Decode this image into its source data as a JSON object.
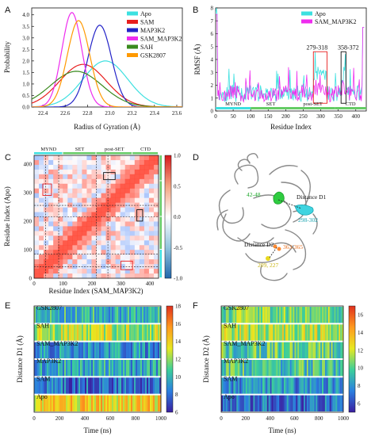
{
  "panels": {
    "A": {
      "letter": "A",
      "chart_data": {
        "type": "line",
        "xlabel": "Radius of Gyration (Å)",
        "ylabel": "Probability",
        "xlim": [
          22.3,
          23.65
        ],
        "ylim": [
          0,
          4.3
        ],
        "xticks": [
          22.4,
          22.6,
          22.8,
          23.0,
          23.2,
          23.4,
          23.6
        ],
        "yticks": [
          0.0,
          0.5,
          1.0,
          1.5,
          2.0,
          2.5,
          3.0,
          3.5,
          4.0
        ],
        "xtick_labels": [
          "22.4",
          "22.6",
          "22.8",
          "23.0",
          "23.2",
          "23.4",
          "23.6"
        ],
        "ytick_labels": [
          "0.0",
          "0.5",
          "1.0",
          "1.5",
          "2.0",
          "2.5",
          "3.0",
          "3.5",
          "4.0"
        ],
        "legend_position": "top-right",
        "series": [
          {
            "name": "Apo",
            "color": "#3de0e0",
            "mu": 22.96,
            "sigma": 0.2,
            "peak": 2.0
          },
          {
            "name": "SAM",
            "color": "#e81e1e",
            "mu": 22.76,
            "sigma": 0.21,
            "peak": 1.85
          },
          {
            "name": "MAP3K2",
            "color": "#2323c8",
            "mu": 22.91,
            "sigma": 0.105,
            "peak": 3.55
          },
          {
            "name": "SAM_MAP3K2",
            "color": "#ee2cee",
            "mu": 22.66,
            "sigma": 0.09,
            "peak": 4.1
          },
          {
            "name": "SAH",
            "color": "#3a8a1e",
            "mu": 22.7,
            "sigma": 0.23,
            "peak": 1.55
          },
          {
            "name": "GSK2807",
            "color": "#ff9900",
            "mu": 22.72,
            "sigma": 0.1,
            "peak": 3.75
          }
        ]
      }
    },
    "B": {
      "letter": "B",
      "chart_data": {
        "type": "line",
        "xlabel": "Residue Index",
        "ylabel": "RMSF (Å)",
        "xlim": [
          0,
          430
        ],
        "ylim": [
          0,
          8
        ],
        "xticks": [
          0,
          50,
          100,
          150,
          200,
          250,
          300,
          350,
          400
        ],
        "yticks": [
          0,
          1,
          2,
          3,
          4,
          5,
          6,
          7,
          8
        ],
        "xtick_labels": [
          "0",
          "50",
          "100",
          "150",
          "200",
          "250",
          "300",
          "350",
          "400"
        ],
        "ytick_labels": [
          "0",
          "1",
          "2",
          "3",
          "4",
          "5",
          "6",
          "7",
          "8"
        ],
        "legend_position": "top-right",
        "series": [
          {
            "name": "Apo",
            "color": "#3de0e0"
          },
          {
            "name": "SAM_MAP3K2",
            "color": "#ee2cee"
          }
        ],
        "highlight_boxes": [
          {
            "label": "279-318",
            "start": 279,
            "end": 318,
            "ymax": 4.6,
            "color": "#e81e1e"
          },
          {
            "label": "358-372",
            "start": 358,
            "end": 372,
            "ymax": 4.6,
            "color": "#111111"
          }
        ],
        "domains": [
          {
            "label": "MYND",
            "start": 0,
            "end": 100,
            "color": "#3de0e0"
          },
          {
            "label": "SET",
            "start": 100,
            "end": 215,
            "color": "#66cc66"
          },
          {
            "label": "post-SET",
            "start": 215,
            "end": 340,
            "color": "#66cc66"
          },
          {
            "label": "CTD",
            "start": 340,
            "end": 430,
            "color": "#66cc66"
          }
        ]
      }
    },
    "C": {
      "letter": "C",
      "chart_data": {
        "type": "heatmap",
        "xlabel": "Residue Index (SAM_MAP3K2)",
        "ylabel": "Residue Index (Apo)",
        "xlim": [
          0,
          430
        ],
        "ylim": [
          0,
          430
        ],
        "xticks": [
          0,
          100,
          200,
          300,
          400
        ],
        "yticks": [
          0,
          100,
          200,
          300,
          400
        ],
        "xtick_labels": [
          "0",
          "100",
          "200",
          "300",
          "400"
        ],
        "ytick_labels": [
          "0",
          "100",
          "200",
          "300",
          "400"
        ],
        "colorbar_ticks": [
          1.0,
          0.5,
          0.0,
          -0.5,
          -1.0
        ],
        "colorbar_labels": [
          "1.0",
          "0.5",
          "0.0",
          "-0.5",
          "-1.0"
        ],
        "colorbar_range": [
          -1.0,
          1.0
        ],
        "domains": [
          {
            "label": "MYND",
            "start": 0,
            "end": 100
          },
          {
            "label": "SET",
            "start": 100,
            "end": 215
          },
          {
            "label": "post-SET",
            "start": 215,
            "end": 340
          },
          {
            "label": "CTD",
            "start": 340,
            "end": 430
          }
        ],
        "dashed_lines": [
          40,
          85,
          215,
          255
        ],
        "boxes": [
          {
            "x0": 240,
            "x1": 280,
            "y0": 345,
            "y1": 370,
            "color": "#111111"
          },
          {
            "x0": 355,
            "x1": 375,
            "y0": 200,
            "y1": 240,
            "color": "#111111"
          },
          {
            "x0": 300,
            "x1": 340,
            "y0": 30,
            "y1": 60,
            "color": "#e81e1e"
          },
          {
            "x0": 30,
            "x1": 60,
            "y0": 290,
            "y1": 330,
            "color": "#e81e1e"
          }
        ]
      }
    },
    "D": {
      "letter": "D",
      "labels": {
        "d1": "Distance D1",
        "d2": "Distance D2",
        "r1": "42-48",
        "r2": "298-302",
        "r3": "363-365",
        "r4": "209, 227"
      }
    },
    "E": {
      "letter": "E",
      "chart_data": {
        "type": "heatmap",
        "xlabel": "Time (ns)",
        "ylabel": "Distance D1 (Å)",
        "xlim": [
          0,
          1000
        ],
        "xticks": [
          0,
          200,
          400,
          600,
          800,
          1000
        ],
        "xtick_labels": [
          "0",
          "200",
          "400",
          "600",
          "800",
          "1000"
        ],
        "rows": [
          "Apo",
          "SAM",
          "MAP3K2",
          "SAM_MAP3K2",
          "SAH",
          "GSK2807"
        ],
        "row_levels": [
          14,
          8,
          9.5,
          9,
          12.5,
          10
        ],
        "colorbar_range": [
          6,
          18
        ],
        "colorbar_ticks": [
          18,
          16,
          14,
          12,
          10,
          8,
          6
        ],
        "colorbar_labels": [
          "18",
          "16",
          "14",
          "12",
          "10",
          "8",
          "6"
        ]
      }
    },
    "F": {
      "letter": "F",
      "chart_data": {
        "type": "heatmap",
        "xlabel": "Time (ns)",
        "ylabel": "Distance D2 (Å)",
        "xlim": [
          0,
          1000
        ],
        "xticks": [
          0,
          200,
          400,
          600,
          800,
          1000
        ],
        "xtick_labels": [
          "0",
          "200",
          "400",
          "600",
          "800",
          "1000"
        ],
        "rows": [
          "Apo",
          "SAM",
          "MAP3K2",
          "SAM_MAP3K2",
          "SAH",
          "GSK2807"
        ],
        "row_levels": [
          7,
          8,
          9.5,
          10,
          11.5,
          10.5
        ],
        "colorbar_range": [
          5,
          17
        ],
        "colorbar_ticks": [
          16,
          14,
          12,
          10,
          8,
          6
        ],
        "colorbar_labels": [
          "16",
          "14",
          "12",
          "10",
          "8",
          "6"
        ]
      }
    }
  }
}
